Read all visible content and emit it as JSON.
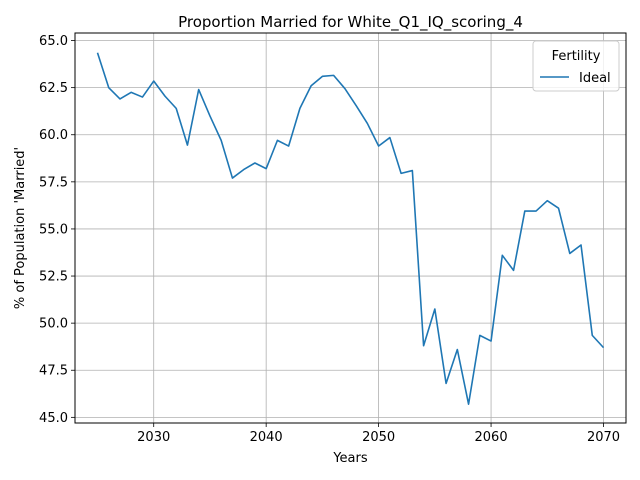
{
  "chart_data": {
    "type": "line",
    "title": "Proportion Married for White_Q1_IQ_scoring_4",
    "xlabel": "Years",
    "ylabel": "% of Population 'Married'",
    "xlim": [
      2023,
      2072
    ],
    "ylim": [
      44.7,
      65.4
    ],
    "xticks": [
      2030,
      2040,
      2050,
      2060,
      2070
    ],
    "yticks": [
      45.0,
      47.5,
      50.0,
      52.5,
      55.0,
      57.5,
      60.0,
      62.5,
      65.0
    ],
    "grid": true,
    "legend": {
      "title": "Fertility",
      "placement": "top-right"
    },
    "series": [
      {
        "name": "Ideal",
        "color": "#1f77b4",
        "x": [
          2025,
          2026,
          2027,
          2028,
          2029,
          2030,
          2031,
          2032,
          2033,
          2034,
          2035,
          2036,
          2037,
          2038,
          2039,
          2040,
          2041,
          2042,
          2043,
          2044,
          2045,
          2046,
          2047,
          2048,
          2049,
          2050,
          2051,
          2052,
          2053,
          2054,
          2055,
          2056,
          2057,
          2058,
          2059,
          2060,
          2061,
          2062,
          2063,
          2064,
          2065,
          2066,
          2067,
          2068,
          2069,
          2070
        ],
        "values": [
          64.35,
          62.5,
          61.9,
          62.25,
          62.0,
          62.85,
          62.05,
          61.4,
          59.45,
          62.4,
          61.0,
          59.7,
          57.7,
          58.15,
          58.5,
          58.2,
          59.7,
          59.4,
          61.4,
          62.6,
          63.1,
          63.15,
          62.45,
          61.55,
          60.6,
          59.4,
          59.85,
          57.95,
          58.1,
          48.8,
          50.75,
          46.8,
          48.6,
          45.7,
          49.35,
          49.05,
          53.6,
          52.8,
          55.95,
          55.95,
          56.5,
          56.1,
          53.7,
          54.15,
          49.35,
          48.7
        ]
      }
    ]
  }
}
